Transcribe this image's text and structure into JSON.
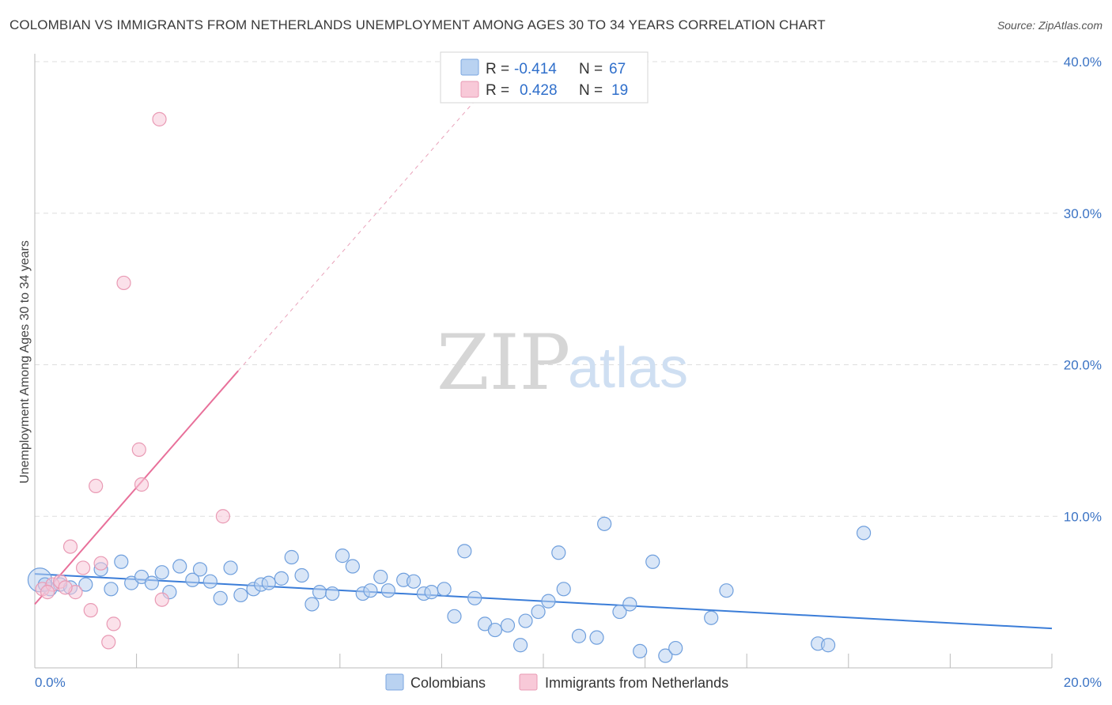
{
  "title": "COLOMBIAN VS IMMIGRANTS FROM NETHERLANDS UNEMPLOYMENT AMONG AGES 30 TO 34 YEARS CORRELATION CHART",
  "source": "Source: ZipAtlas.com",
  "watermark": {
    "zip": "ZIP",
    "atlas": "atlas"
  },
  "colors": {
    "blue": "#3b7dd8",
    "blue_fill": "#b9d2f1",
    "pink": "#e8709a",
    "pink_fill": "#f8c9d8",
    "axis_text": "#3b73c4",
    "grid": "#dddddd"
  },
  "legend": {
    "rows": [
      {
        "r_label": "R =",
        "r_value": "-0.414",
        "n_label": "N =",
        "n_value": "67"
      },
      {
        "r_label": "R =",
        "r_value": "0.428",
        "n_label": "N =",
        "n_value": "19"
      }
    ]
  },
  "bottom_legend": [
    "Colombians",
    "Immigrants from Netherlands"
  ],
  "chart_data": {
    "type": "scatter",
    "xlabel": "",
    "ylabel": "Unemployment Among Ages 30 to 34 years",
    "xlim": [
      0,
      20
    ],
    "ylim": [
      0,
      40
    ],
    "x_tick_labels": [
      "0.0%",
      "20.0%"
    ],
    "y_tick_labels": [
      "10.0%",
      "20.0%",
      "30.0%",
      "40.0%"
    ],
    "y_ticks": [
      10,
      20,
      30,
      40
    ],
    "x_minor_ticks": [
      0,
      2,
      4,
      6,
      8,
      10,
      12,
      14,
      16,
      18,
      20
    ],
    "grid": true,
    "series": [
      {
        "name": "Colombians",
        "color": "blue",
        "r": -0.414,
        "n": 67,
        "trend": {
          "x0": 0,
          "y0": 6.2,
          "x1": 20,
          "y1": 2.6
        },
        "points": [
          [
            0.1,
            5.8,
            "big"
          ],
          [
            0.3,
            5.2
          ],
          [
            0.5,
            5.5
          ],
          [
            0.7,
            5.3
          ],
          [
            1.0,
            5.5
          ],
          [
            1.3,
            6.5
          ],
          [
            1.5,
            5.2
          ],
          [
            1.7,
            7.0
          ],
          [
            1.9,
            5.6
          ],
          [
            2.1,
            6.0
          ],
          [
            2.3,
            5.6
          ],
          [
            2.5,
            6.3
          ],
          [
            2.65,
            5.0
          ],
          [
            2.85,
            6.7
          ],
          [
            3.1,
            5.8
          ],
          [
            3.25,
            6.5
          ],
          [
            3.45,
            5.7
          ],
          [
            3.65,
            4.6
          ],
          [
            3.85,
            6.6
          ],
          [
            4.05,
            4.8
          ],
          [
            4.3,
            5.2
          ],
          [
            4.45,
            5.5
          ],
          [
            4.6,
            5.6
          ],
          [
            4.85,
            5.9
          ],
          [
            5.05,
            7.3
          ],
          [
            5.25,
            6.1
          ],
          [
            5.45,
            4.2
          ],
          [
            5.6,
            5.0
          ],
          [
            5.85,
            4.9
          ],
          [
            6.05,
            7.4
          ],
          [
            6.25,
            6.7
          ],
          [
            6.45,
            4.9
          ],
          [
            6.6,
            5.1
          ],
          [
            6.8,
            6.0
          ],
          [
            6.95,
            5.1
          ],
          [
            7.25,
            5.8
          ],
          [
            7.45,
            5.7
          ],
          [
            7.65,
            4.9
          ],
          [
            7.8,
            5.0
          ],
          [
            8.05,
            5.2
          ],
          [
            8.25,
            3.4
          ],
          [
            8.45,
            7.7
          ],
          [
            8.65,
            4.6
          ],
          [
            8.85,
            2.9
          ],
          [
            9.05,
            2.5
          ],
          [
            9.3,
            2.8
          ],
          [
            9.55,
            1.5
          ],
          [
            9.65,
            3.1
          ],
          [
            9.9,
            3.7
          ],
          [
            10.1,
            4.4
          ],
          [
            10.3,
            7.6
          ],
          [
            10.4,
            5.2
          ],
          [
            10.7,
            2.1
          ],
          [
            11.05,
            2.0
          ],
          [
            11.2,
            9.5
          ],
          [
            11.5,
            3.7
          ],
          [
            11.7,
            4.2
          ],
          [
            11.9,
            1.1
          ],
          [
            12.15,
            7.0
          ],
          [
            12.4,
            0.8
          ],
          [
            12.6,
            1.3
          ],
          [
            13.3,
            3.3
          ],
          [
            13.6,
            5.1
          ],
          [
            15.4,
            1.6
          ],
          [
            15.6,
            1.5
          ],
          [
            16.3,
            8.9
          ],
          [
            0.2,
            5.5
          ]
        ]
      },
      {
        "name": "Immigrants from Netherlands",
        "color": "pink",
        "r": 0.428,
        "n": 19,
        "trend": {
          "x0": 0,
          "y0": 4.2,
          "x1": 4.0,
          "y1": 19.6
        },
        "trend_dashed_to": {
          "x": 8.7,
          "y": 37.6
        },
        "points": [
          [
            0.15,
            5.2
          ],
          [
            0.35,
            5.5
          ],
          [
            0.5,
            5.7
          ],
          [
            0.7,
            8.0
          ],
          [
            0.8,
            5.0
          ],
          [
            0.95,
            6.6
          ],
          [
            1.1,
            3.8
          ],
          [
            1.2,
            12.0
          ],
          [
            1.3,
            6.9
          ],
          [
            1.45,
            1.7
          ],
          [
            1.55,
            2.9
          ],
          [
            1.75,
            25.4
          ],
          [
            2.05,
            14.4
          ],
          [
            2.1,
            12.1
          ],
          [
            2.5,
            4.5
          ],
          [
            2.45,
            36.2
          ],
          [
            3.7,
            10.0
          ],
          [
            0.25,
            5.0
          ],
          [
            0.6,
            5.3
          ]
        ]
      }
    ]
  }
}
